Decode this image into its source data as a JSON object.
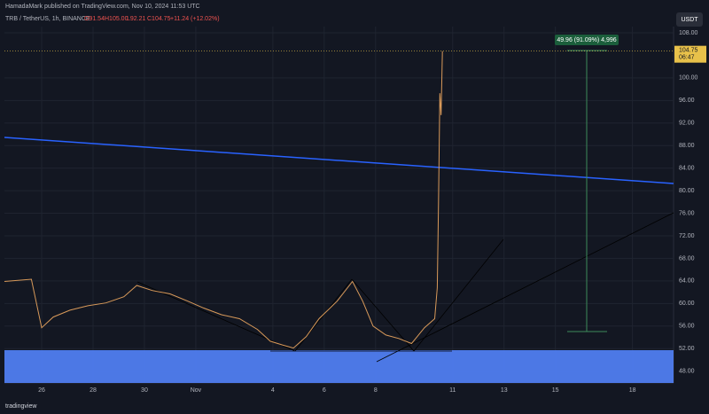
{
  "header": {
    "published": "HamadaMark published on TradingView.com, Nov 10, 2024 11:53 UTC",
    "symbol": "TRB / TetherUS, 1h, BINANCE",
    "open": "O91.54",
    "high": "H105.00",
    "low": "L92.21",
    "close": "C104.75",
    "change": "+11.24 (+12.02%)"
  },
  "footer": "tradingview",
  "chart_data": {
    "type": "line",
    "color": "#d99a5a",
    "currency": "USDT",
    "last_price": 104.75,
    "countdown": "06:47",
    "measure_label": "49.96 (91.09%) 4,996",
    "x": [
      -1.45,
      -0.4,
      0,
      0.45,
      1.1,
      1.8,
      2.5,
      3.2,
      3.7,
      4.3,
      5,
      5.7,
      6.3,
      7,
      7.7,
      8.4,
      8.9,
      9.4,
      9.8,
      10.3,
      10.8,
      11.5,
      12.1,
      12.5,
      12.9,
      13.4,
      13.9,
      14.4,
      14.9,
      15.3,
      15.4,
      15.45,
      15.5,
      15.55,
      15.6
    ],
    "values": [
      63.9,
      64.3,
      55.7,
      57.6,
      58.8,
      59.6,
      60.1,
      61.2,
      63.2,
      62.3,
      61.7,
      60.4,
      59.2,
      58,
      57.3,
      55.4,
      53.3,
      52.6,
      52.1,
      54.1,
      57.3,
      60.4,
      63.9,
      60.4,
      56,
      54.4,
      53.8,
      52.9,
      55.7,
      57.3,
      62.8,
      77.7,
      97.3,
      93.4,
      104.75
    ],
    "xlim": [
      -1.45,
      24.6
    ],
    "ylim": [
      45.9,
      109.1
    ],
    "xticks": [
      {
        "value": 0,
        "label": "26"
      },
      {
        "value": 2,
        "label": "28"
      },
      {
        "value": 4,
        "label": "30"
      },
      {
        "value": 6,
        "label": "Nov"
      },
      {
        "value": 9,
        "label": "4"
      },
      {
        "value": 11,
        "label": "6"
      },
      {
        "value": 13,
        "label": "8"
      },
      {
        "value": 16,
        "label": "11"
      },
      {
        "value": 18,
        "label": "13"
      },
      {
        "value": 20,
        "label": "15"
      },
      {
        "value": 23,
        "label": "18"
      }
    ],
    "yticks": [
      {
        "value": 108,
        "label": "108.00"
      },
      {
        "value": 100,
        "label": "100.00"
      },
      {
        "value": 96,
        "label": "96.00"
      },
      {
        "value": 92,
        "label": "92.00"
      },
      {
        "value": 88,
        "label": "88.00"
      },
      {
        "value": 84,
        "label": "84.00"
      },
      {
        "value": 80,
        "label": "80.00"
      },
      {
        "value": 76,
        "label": "76.00"
      },
      {
        "value": 72,
        "label": "72.00"
      },
      {
        "value": 68,
        "label": "68.00"
      },
      {
        "value": 64,
        "label": "64.00"
      },
      {
        "value": 60,
        "label": "60.00"
      },
      {
        "value": 56,
        "label": "56.00"
      },
      {
        "value": 52,
        "label": "52.00"
      },
      {
        "value": 48,
        "label": "48.00"
      }
    ],
    "grid": true
  }
}
